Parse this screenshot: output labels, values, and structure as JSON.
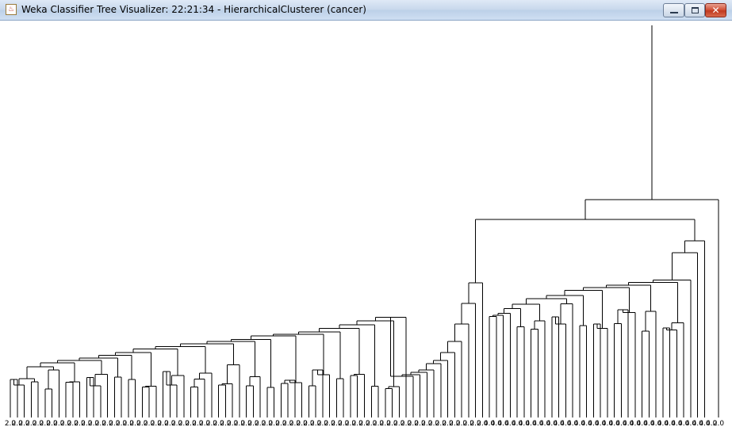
{
  "window": {
    "title": "Weka Classifier Tree Visualizer: 22:21:34 - HierarchicalClusterer (cancer)",
    "icon": "java-app-icon",
    "buttons": [
      "minimize-icon",
      "maximize-icon",
      "close-icon"
    ]
  },
  "dendrogram": {
    "leaf_label_first_group": "2.0",
    "leaf_label_second_group": "4.0",
    "leaf_label_last": "2.0",
    "leaf_count_2": 69,
    "leaf_count_4": 33,
    "line_color": "#000000",
    "background": "#ffffff"
  }
}
